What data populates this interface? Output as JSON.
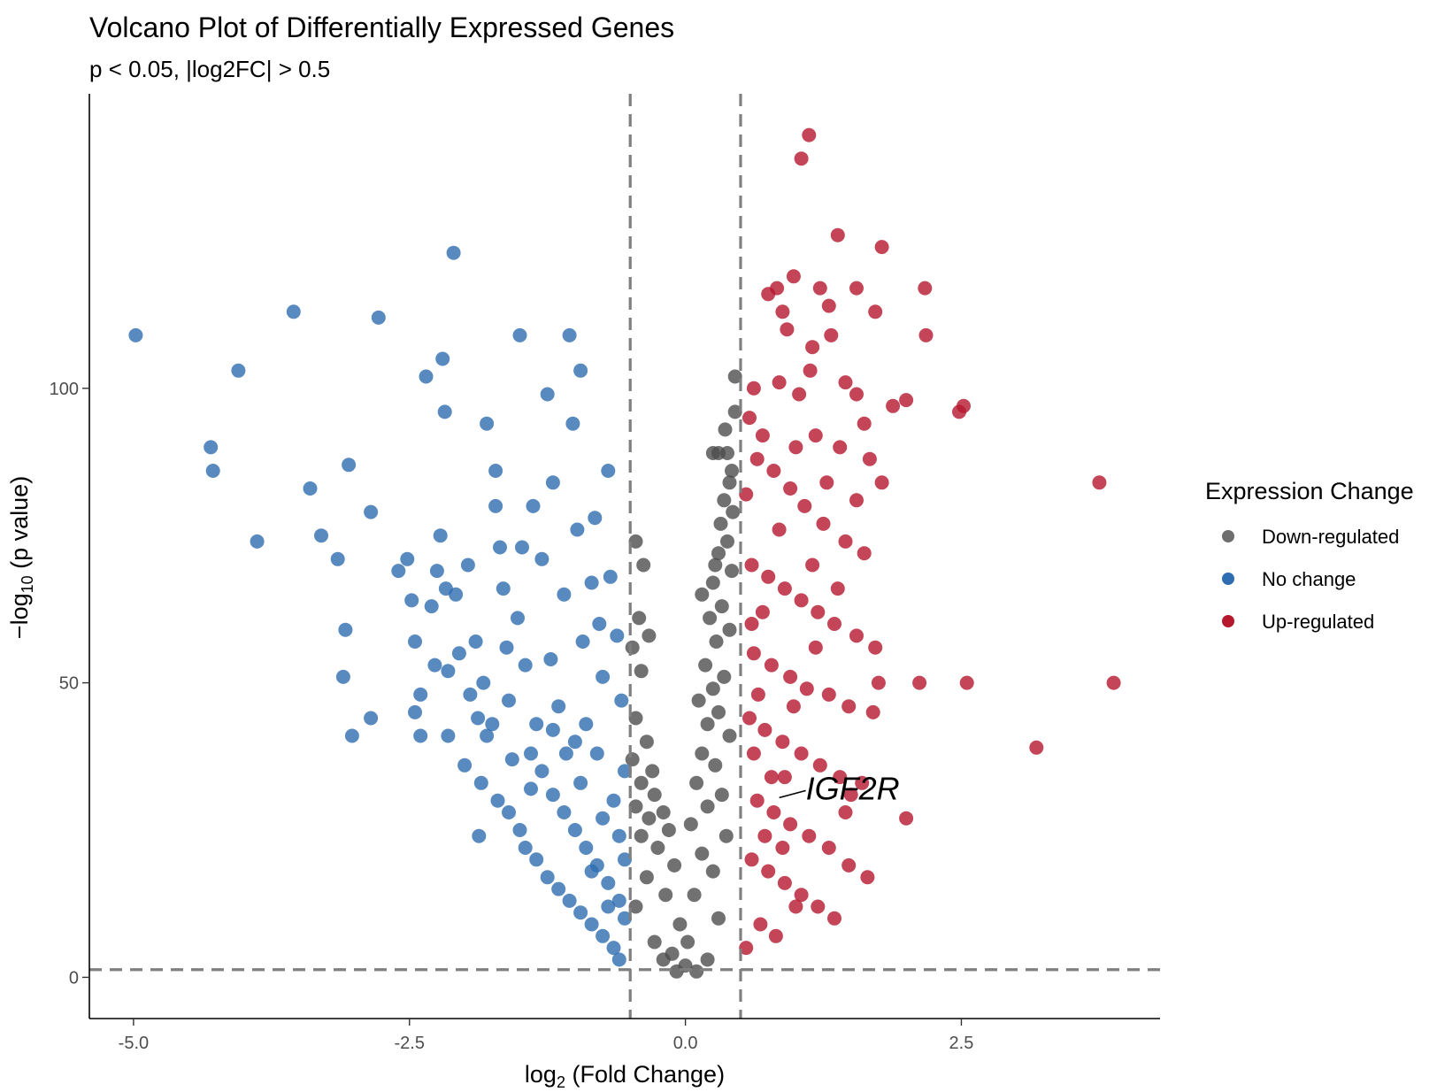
{
  "chart_data": {
    "type": "scatter",
    "title": "Volcano Plot of Differentially Expressed Genes",
    "subtitle": "p < 0.05, |log2FC| > 0.5",
    "xlabel": {
      "prefix": "log",
      "sub": "2",
      "suffix": " (Fold Change)"
    },
    "ylabel": {
      "prefix": "−log",
      "sub": "10",
      "suffix": " (p value)"
    },
    "xlim": [
      -5.4,
      4.3
    ],
    "ylim": [
      -7,
      150
    ],
    "xticks": [
      -5.0,
      -2.5,
      0.0,
      2.5
    ],
    "xtick_labels": [
      "-5.0",
      "-2.5",
      "0.0",
      "2.5"
    ],
    "yticks": [
      0,
      50,
      100
    ],
    "ytick_labels": [
      "0",
      "50",
      "100"
    ],
    "grid": false,
    "thresholds": {
      "vlines": [
        -0.5,
        0.5
      ],
      "hline": 1.3
    },
    "legend": {
      "title": "Expression Change",
      "position": "right",
      "entries": [
        {
          "label": "Down-regulated",
          "color": "#6e6e6e"
        },
        {
          "label": "No change",
          "color": "#2e6db0"
        },
        {
          "label": "Up-regulated",
          "color": "#b5172d"
        }
      ]
    },
    "series": [
      {
        "name": "Down-regulated",
        "color": "#4d4d4d",
        "points": [
          [
            0.45,
            102
          ],
          [
            0.45,
            96
          ],
          [
            0.36,
            93
          ],
          [
            0.3,
            89
          ],
          [
            0.38,
            89
          ],
          [
            0.25,
            89
          ],
          [
            0.42,
            86
          ],
          [
            0.4,
            84
          ],
          [
            0.35,
            81
          ],
          [
            0.43,
            79
          ],
          [
            0.32,
            77
          ],
          [
            0.38,
            74
          ],
          [
            0.3,
            72
          ],
          [
            0.27,
            70
          ],
          [
            0.42,
            69
          ],
          [
            0.25,
            67
          ],
          [
            0.15,
            65
          ],
          [
            0.33,
            63
          ],
          [
            0.22,
            61
          ],
          [
            0.4,
            59
          ],
          [
            0.28,
            57
          ],
          [
            0.18,
            53
          ],
          [
            0.35,
            51
          ],
          [
            0.25,
            49
          ],
          [
            0.12,
            47
          ],
          [
            0.3,
            45
          ],
          [
            0.2,
            43
          ],
          [
            0.4,
            41
          ],
          [
            0.15,
            38
          ],
          [
            0.27,
            36
          ],
          [
            0.1,
            33
          ],
          [
            0.33,
            31
          ],
          [
            0.2,
            29
          ],
          [
            0.05,
            26
          ],
          [
            0.37,
            24
          ],
          [
            0.15,
            21
          ],
          [
            0.25,
            18
          ],
          [
            0.08,
            14
          ],
          [
            0.3,
            10
          ],
          [
            0.02,
            6
          ],
          [
            -0.45,
            74
          ],
          [
            -0.38,
            70
          ],
          [
            -0.42,
            61
          ],
          [
            -0.33,
            58
          ],
          [
            -0.48,
            56
          ],
          [
            -0.4,
            52
          ],
          [
            -0.45,
            44
          ],
          [
            -0.35,
            40
          ],
          [
            -0.48,
            37
          ],
          [
            -0.3,
            35
          ],
          [
            -0.4,
            33
          ],
          [
            -0.28,
            31
          ],
          [
            -0.45,
            29
          ],
          [
            -0.2,
            28
          ],
          [
            -0.33,
            27
          ],
          [
            -0.15,
            25
          ],
          [
            -0.4,
            24
          ],
          [
            -0.25,
            22
          ],
          [
            -0.1,
            19
          ],
          [
            -0.35,
            17
          ],
          [
            -0.18,
            14
          ],
          [
            -0.45,
            12
          ],
          [
            -0.05,
            9
          ],
          [
            -0.28,
            6
          ],
          [
            -0.12,
            4
          ],
          [
            0.0,
            2
          ],
          [
            0.1,
            1
          ],
          [
            -0.08,
            1
          ],
          [
            0.2,
            3
          ],
          [
            -0.2,
            3
          ]
        ]
      },
      {
        "name": "No change",
        "color": "#2e6db0",
        "points": [
          [
            -4.98,
            109
          ],
          [
            -4.05,
            103
          ],
          [
            -4.3,
            90
          ],
          [
            -4.28,
            86
          ],
          [
            -3.88,
            74
          ],
          [
            -3.55,
            113
          ],
          [
            -3.4,
            83
          ],
          [
            -3.3,
            75
          ],
          [
            -3.15,
            71
          ],
          [
            -3.05,
            87
          ],
          [
            -3.08,
            59
          ],
          [
            -3.1,
            51
          ],
          [
            -3.02,
            41
          ],
          [
            -2.85,
            79
          ],
          [
            -2.85,
            44
          ],
          [
            -2.78,
            112
          ],
          [
            -2.6,
            69
          ],
          [
            -2.52,
            71
          ],
          [
            -2.48,
            64
          ],
          [
            -2.45,
            57
          ],
          [
            -2.4,
            48
          ],
          [
            -2.45,
            45
          ],
          [
            -2.4,
            41
          ],
          [
            -2.35,
            102
          ],
          [
            -2.3,
            63
          ],
          [
            -2.27,
            53
          ],
          [
            -2.22,
            75
          ],
          [
            -2.25,
            69
          ],
          [
            -2.2,
            105
          ],
          [
            -2.18,
            96
          ],
          [
            -2.17,
            66
          ],
          [
            -2.15,
            52
          ],
          [
            -2.15,
            41
          ],
          [
            -2.1,
            123
          ],
          [
            -2.08,
            65
          ],
          [
            -2.05,
            55
          ],
          [
            -2.0,
            36
          ],
          [
            -1.97,
            70
          ],
          [
            -1.95,
            48
          ],
          [
            -1.9,
            57
          ],
          [
            -1.88,
            44
          ],
          [
            -1.87,
            24
          ],
          [
            -1.83,
            50
          ],
          [
            -1.8,
            41
          ],
          [
            -1.8,
            94
          ],
          [
            -1.75,
            43
          ],
          [
            -1.72,
            86
          ],
          [
            -1.72,
            80
          ],
          [
            -1.68,
            73
          ],
          [
            -1.65,
            66
          ],
          [
            -1.62,
            56
          ],
          [
            -1.6,
            47
          ],
          [
            -1.57,
            37
          ],
          [
            -1.52,
            61
          ],
          [
            -1.5,
            109
          ],
          [
            -1.48,
            73
          ],
          [
            -1.45,
            53
          ],
          [
            -1.4,
            32
          ],
          [
            -1.38,
            80
          ],
          [
            -1.35,
            43
          ],
          [
            -1.3,
            71
          ],
          [
            -1.25,
            99
          ],
          [
            -1.22,
            54
          ],
          [
            -1.2,
            84
          ],
          [
            -1.15,
            46
          ],
          [
            -1.1,
            65
          ],
          [
            -1.08,
            38
          ],
          [
            -1.05,
            109
          ],
          [
            -1.02,
            94
          ],
          [
            -0.98,
            76
          ],
          [
            -0.95,
            103
          ],
          [
            -0.93,
            57
          ],
          [
            -0.9,
            43
          ],
          [
            -0.85,
            67
          ],
          [
            -0.82,
            78
          ],
          [
            -0.78,
            60
          ],
          [
            -0.75,
            51
          ],
          [
            -0.7,
            86
          ],
          [
            -0.68,
            68
          ],
          [
            -0.62,
            58
          ],
          [
            -0.58,
            47
          ],
          [
            -0.55,
            35
          ],
          [
            -1.85,
            33
          ],
          [
            -1.7,
            30
          ],
          [
            -1.6,
            28
          ],
          [
            -1.5,
            25
          ],
          [
            -1.45,
            22
          ],
          [
            -1.35,
            20
          ],
          [
            -1.25,
            17
          ],
          [
            -1.15,
            15
          ],
          [
            -1.05,
            13
          ],
          [
            -0.95,
            11
          ],
          [
            -0.85,
            9
          ],
          [
            -0.75,
            7
          ],
          [
            -0.65,
            5
          ],
          [
            -0.6,
            3
          ],
          [
            -1.4,
            38
          ],
          [
            -1.3,
            35
          ],
          [
            -1.2,
            31
          ],
          [
            -1.1,
            28
          ],
          [
            -1.0,
            25
          ],
          [
            -0.9,
            22
          ],
          [
            -0.8,
            19
          ],
          [
            -0.7,
            16
          ],
          [
            -0.6,
            13
          ],
          [
            -0.55,
            10
          ],
          [
            -1.2,
            42
          ],
          [
            -1.0,
            40
          ],
          [
            -0.8,
            38
          ],
          [
            -0.65,
            30
          ],
          [
            -0.95,
            33
          ],
          [
            -0.75,
            27
          ],
          [
            -0.6,
            24
          ],
          [
            -0.55,
            20
          ],
          [
            -0.85,
            18
          ],
          [
            -0.7,
            12
          ]
        ]
      },
      {
        "name": "Up-regulated",
        "color": "#b5172d",
        "points": [
          [
            1.12,
            143
          ],
          [
            1.05,
            139
          ],
          [
            1.38,
            126
          ],
          [
            1.78,
            124
          ],
          [
            0.98,
            119
          ],
          [
            0.75,
            116
          ],
          [
            0.83,
            117
          ],
          [
            1.22,
            117
          ],
          [
            1.55,
            117
          ],
          [
            2.17,
            117
          ],
          [
            1.3,
            114
          ],
          [
            0.88,
            113
          ],
          [
            1.72,
            113
          ],
          [
            0.92,
            110
          ],
          [
            1.32,
            109
          ],
          [
            2.18,
            109
          ],
          [
            1.15,
            107
          ],
          [
            0.85,
            101
          ],
          [
            1.13,
            103
          ],
          [
            1.45,
            101
          ],
          [
            0.62,
            100
          ],
          [
            1.03,
            99
          ],
          [
            1.55,
            99
          ],
          [
            1.88,
            97
          ],
          [
            2.0,
            98
          ],
          [
            2.48,
            96
          ],
          [
            2.52,
            97
          ],
          [
            1.62,
            94
          ],
          [
            1.18,
            92
          ],
          [
            1.4,
            90
          ],
          [
            1.67,
            88
          ],
          [
            1.78,
            84
          ],
          [
            1.55,
            81
          ],
          [
            3.75,
            84
          ],
          [
            0.58,
            95
          ],
          [
            0.7,
            92
          ],
          [
            0.65,
            88
          ],
          [
            0.8,
            86
          ],
          [
            0.95,
            83
          ],
          [
            1.08,
            80
          ],
          [
            1.25,
            77
          ],
          [
            1.45,
            74
          ],
          [
            1.62,
            72
          ],
          [
            0.6,
            70
          ],
          [
            0.75,
            68
          ],
          [
            0.9,
            66
          ],
          [
            1.05,
            64
          ],
          [
            1.2,
            62
          ],
          [
            1.35,
            60
          ],
          [
            1.55,
            58
          ],
          [
            1.72,
            56
          ],
          [
            0.62,
            55
          ],
          [
            0.78,
            53
          ],
          [
            0.95,
            51
          ],
          [
            1.1,
            49
          ],
          [
            1.3,
            48
          ],
          [
            1.48,
            46
          ],
          [
            1.7,
            45
          ],
          [
            2.12,
            50
          ],
          [
            2.55,
            50
          ],
          [
            3.88,
            50
          ],
          [
            1.75,
            50
          ],
          [
            0.58,
            44
          ],
          [
            0.72,
            42
          ],
          [
            0.88,
            40
          ],
          [
            1.05,
            38
          ],
          [
            1.22,
            36
          ],
          [
            1.4,
            34
          ],
          [
            1.6,
            33
          ],
          [
            3.18,
            39
          ],
          [
            2.0,
            27
          ],
          [
            1.5,
            31
          ],
          [
            0.65,
            30
          ],
          [
            0.8,
            28
          ],
          [
            0.95,
            26
          ],
          [
            1.12,
            24
          ],
          [
            1.3,
            22
          ],
          [
            1.48,
            19
          ],
          [
            1.65,
            17
          ],
          [
            0.6,
            20
          ],
          [
            0.75,
            18
          ],
          [
            0.9,
            16
          ],
          [
            1.05,
            14
          ],
          [
            1.2,
            12
          ],
          [
            1.35,
            10
          ],
          [
            0.68,
            9
          ],
          [
            0.82,
            7
          ],
          [
            0.55,
            5
          ],
          [
            0.62,
            38
          ],
          [
            0.7,
            62
          ],
          [
            0.85,
            76
          ],
          [
            1.0,
            90
          ],
          [
            1.15,
            70
          ],
          [
            1.28,
            84
          ],
          [
            0.98,
            46
          ],
          [
            1.18,
            56
          ],
          [
            1.38,
            66
          ],
          [
            0.9,
            34
          ],
          [
            0.72,
            24
          ],
          [
            1.45,
            28
          ],
          [
            0.55,
            82
          ],
          [
            0.6,
            60
          ],
          [
            0.66,
            48
          ],
          [
            0.78,
            34
          ],
          [
            0.88,
            22
          ],
          [
            1.0,
            12
          ]
        ]
      }
    ],
    "annotations": [
      {
        "label": "IGF2R",
        "x": 0.85,
        "y": 30.5
      }
    ]
  }
}
